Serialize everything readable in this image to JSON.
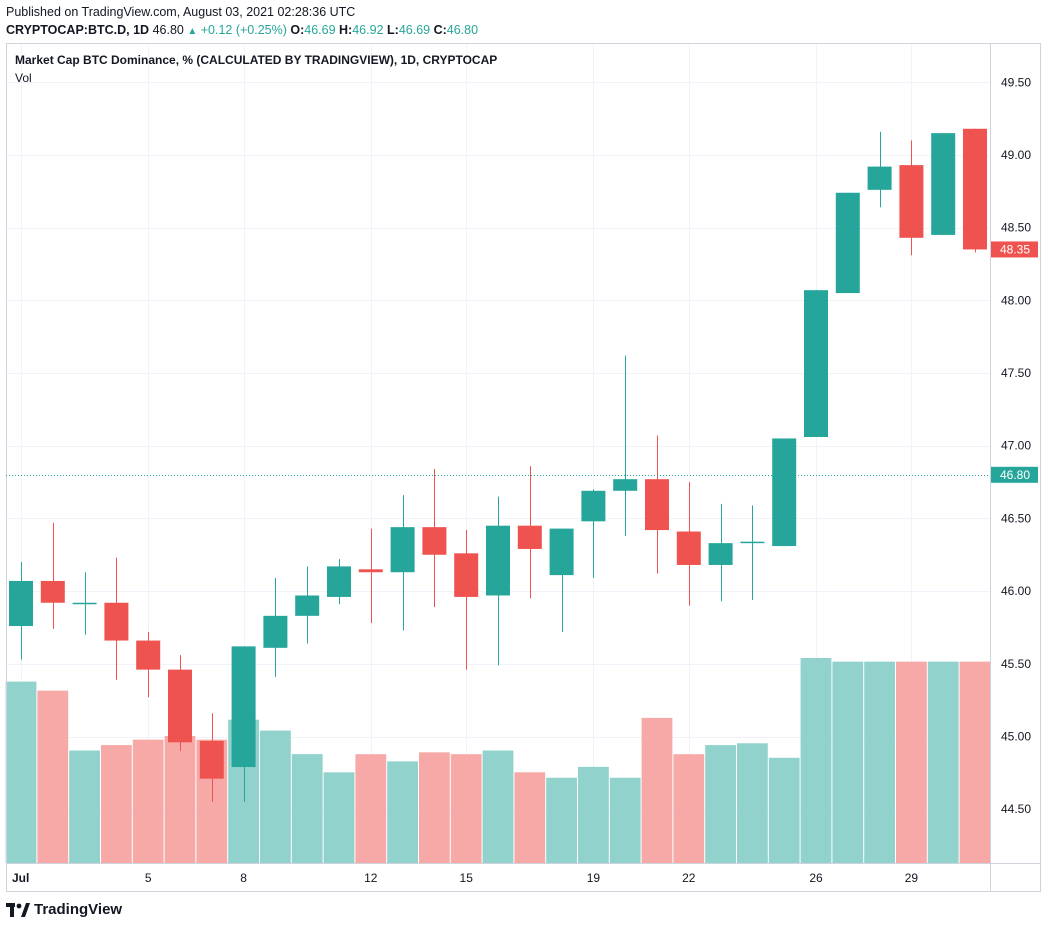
{
  "header": {
    "published": "Published on TradingView.com, August 03, 2021 02:28:36 UTC",
    "symbol": "CRYPTOCAP:BTC.D, 1D",
    "last": "46.80",
    "change": "+0.12 (+0.25%)",
    "o_label": "O:",
    "o": "46.69",
    "h_label": "H:",
    "h": "46.92",
    "l_label": "L:",
    "l": "46.69",
    "c_label": "C:",
    "c": "46.80"
  },
  "chart_title": "Market Cap BTC Dominance, % (CALCULATED BY TRADINGVIEW), 1D, CRYPTOCAP",
  "vol_label": "Vol",
  "price_badges": {
    "last_close": "48.35",
    "current": "46.80"
  },
  "logo_text": "TradingView",
  "colors": {
    "up": "#26a69a",
    "down": "#ef5350",
    "up_vol": "#92d2cc",
    "down_vol": "#f7a9a7",
    "grid": "#f0f3fa"
  },
  "chart_data": {
    "type": "candlestick",
    "x_ticks": [
      {
        "index": 0,
        "label": "Jul"
      },
      {
        "index": 4,
        "label": "5"
      },
      {
        "index": 7,
        "label": "8"
      },
      {
        "index": 11,
        "label": "12"
      },
      {
        "index": 14,
        "label": "15"
      },
      {
        "index": 18,
        "label": "19"
      },
      {
        "index": 21,
        "label": "22"
      },
      {
        "index": 25,
        "label": "26"
      },
      {
        "index": 28,
        "label": "29"
      }
    ],
    "y_ticks": [
      "44.50",
      "45.00",
      "45.50",
      "46.00",
      "46.50",
      "47.00",
      "47.50",
      "48.00",
      "48.50",
      "49.00",
      "49.50"
    ],
    "ylim": [
      44.13,
      49.77
    ],
    "candles": [
      {
        "o": 45.76,
        "h": 46.2,
        "l": 45.53,
        "c": 46.07,
        "v": 1.0
      },
      {
        "o": 46.07,
        "h": 46.47,
        "l": 45.74,
        "c": 45.92,
        "v": 0.95
      },
      {
        "o": 45.91,
        "h": 46.13,
        "l": 45.7,
        "c": 45.92,
        "v": 0.62
      },
      {
        "o": 45.92,
        "h": 46.23,
        "l": 45.39,
        "c": 45.66,
        "v": 0.65
      },
      {
        "o": 45.66,
        "h": 45.72,
        "l": 45.27,
        "c": 45.46,
        "v": 0.68
      },
      {
        "o": 45.46,
        "h": 45.56,
        "l": 44.9,
        "c": 44.96,
        "v": 0.7
      },
      {
        "o": 44.97,
        "h": 45.16,
        "l": 44.55,
        "c": 44.71,
        "v": 0.68
      },
      {
        "o": 44.79,
        "h": 45.62,
        "l": 44.55,
        "c": 45.62,
        "v": 0.79
      },
      {
        "o": 45.61,
        "h": 46.09,
        "l": 45.41,
        "c": 45.83,
        "v": 0.73
      },
      {
        "o": 45.83,
        "h": 46.17,
        "l": 45.64,
        "c": 45.97,
        "v": 0.6
      },
      {
        "o": 45.96,
        "h": 46.22,
        "l": 45.91,
        "c": 46.17,
        "v": 0.5
      },
      {
        "o": 46.15,
        "h": 46.43,
        "l": 45.78,
        "c": 46.13,
        "v": 0.6
      },
      {
        "o": 46.13,
        "h": 46.66,
        "l": 45.73,
        "c": 46.44,
        "v": 0.56
      },
      {
        "o": 46.44,
        "h": 46.84,
        "l": 45.89,
        "c": 46.25,
        "v": 0.61
      },
      {
        "o": 46.26,
        "h": 46.42,
        "l": 45.46,
        "c": 45.96,
        "v": 0.6
      },
      {
        "o": 45.97,
        "h": 46.65,
        "l": 45.49,
        "c": 46.45,
        "v": 0.62
      },
      {
        "o": 46.45,
        "h": 46.86,
        "l": 45.95,
        "c": 46.29,
        "v": 0.5
      },
      {
        "o": 46.11,
        "h": 46.43,
        "l": 45.72,
        "c": 46.43,
        "v": 0.47
      },
      {
        "o": 46.48,
        "h": 46.7,
        "l": 46.09,
        "c": 46.69,
        "v": 0.53
      },
      {
        "o": 46.69,
        "h": 47.62,
        "l": 46.38,
        "c": 46.77,
        "v": 0.47
      },
      {
        "o": 46.77,
        "h": 47.07,
        "l": 46.12,
        "c": 46.42,
        "v": 0.8
      },
      {
        "o": 46.41,
        "h": 46.75,
        "l": 45.9,
        "c": 46.18,
        "v": 0.6
      },
      {
        "o": 46.18,
        "h": 46.6,
        "l": 45.93,
        "c": 46.33,
        "v": 0.65
      },
      {
        "o": 46.33,
        "h": 46.59,
        "l": 45.94,
        "c": 46.34,
        "v": 0.66
      },
      {
        "o": 46.31,
        "h": 47.05,
        "l": 46.31,
        "c": 47.05,
        "v": 0.58
      },
      {
        "o": 47.06,
        "h": 48.07,
        "l": 47.06,
        "c": 48.07,
        "v": 1.13
      },
      {
        "o": 48.05,
        "h": 48.74,
        "l": 48.05,
        "c": 48.74,
        "v": 1.11
      },
      {
        "o": 48.76,
        "h": 49.16,
        "l": 48.64,
        "c": 48.92,
        "v": 1.11
      },
      {
        "o": 48.93,
        "h": 49.1,
        "l": 48.31,
        "c": 48.43,
        "v": 1.11
      },
      {
        "o": 48.45,
        "h": 49.15,
        "l": 48.45,
        "c": 49.15,
        "v": 1.11
      },
      {
        "o": 49.18,
        "h": 49.18,
        "l": 48.33,
        "c": 48.35,
        "v": 1.11
      }
    ]
  }
}
